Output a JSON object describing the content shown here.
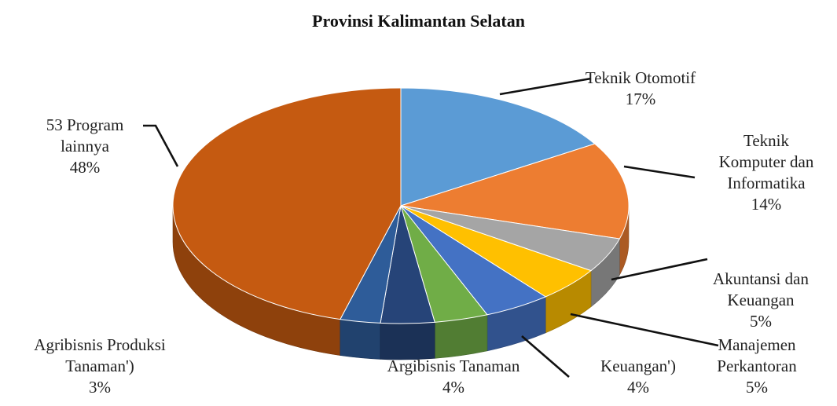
{
  "chart_data": {
    "type": "pie",
    "title": "Provinsi Kalimantan Selatan",
    "slices": [
      {
        "label_lines": [
          "Teknik Otomotif"
        ],
        "value_text": "17%",
        "value": 17,
        "color": "#5B9BD5"
      },
      {
        "label_lines": [
          "Teknik",
          "Komputer dan",
          "Informatika"
        ],
        "value_text": "14%",
        "value": 14,
        "color": "#ED7D31"
      },
      {
        "label_lines": [],
        "value_text": "",
        "value": 5,
        "color": "#A5A5A5"
      },
      {
        "label_lines": [
          "Akuntansi dan",
          "Keuangan"
        ],
        "value_text": "5%",
        "value": 5,
        "color": "#FFC000"
      },
      {
        "label_lines": [
          "Manajemen",
          "Perkantoran"
        ],
        "value_text": "5%",
        "value": 5,
        "color": "#4472C4"
      },
      {
        "label_lines": [
          "Keuangan')"
        ],
        "value_text": "4%",
        "value": 4,
        "color": "#70AD47"
      },
      {
        "label_lines": [
          "Argibisnis Tanaman"
        ],
        "value_text": "4%",
        "value": 4,
        "color": "#264478"
      },
      {
        "label_lines": [
          "Agribisnis Produksi",
          "Tanaman')"
        ],
        "value_text": "3%",
        "value": 3,
        "color": "#2E5C99"
      },
      {
        "label_lines": [
          "53 Program",
          "lainnya"
        ],
        "value_text": "48%",
        "value": 48,
        "color": "#C55A11"
      }
    ]
  }
}
